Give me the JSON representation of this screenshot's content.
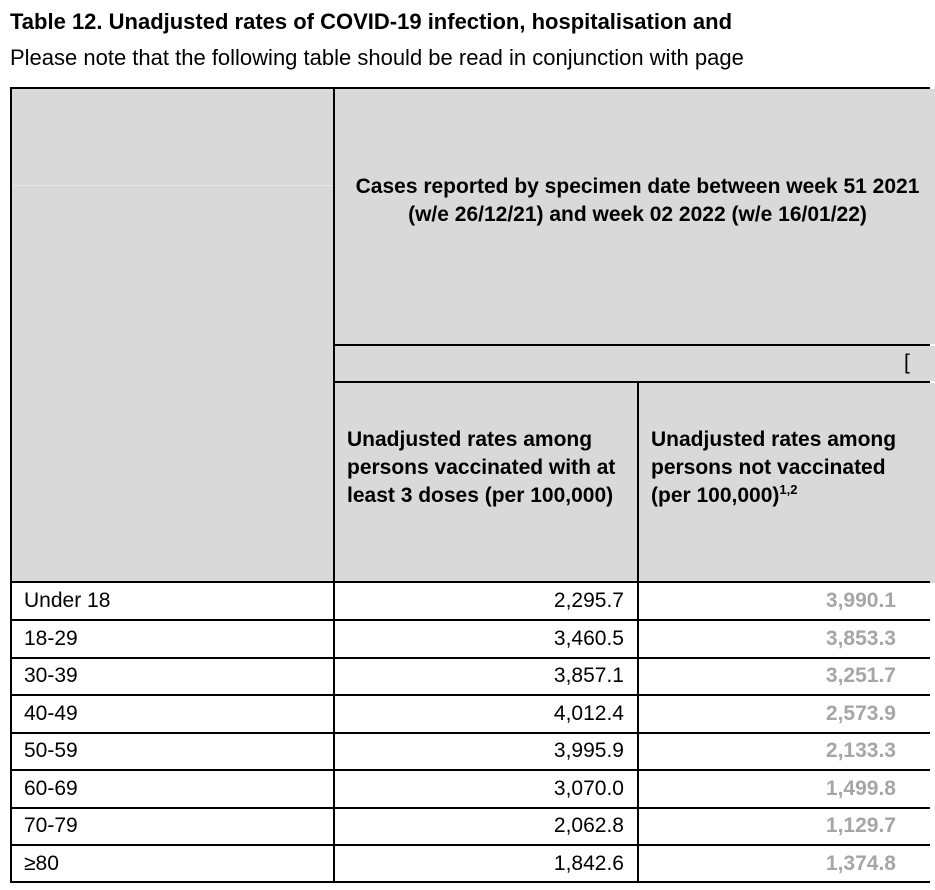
{
  "title": "Table 12. Unadjusted rates of COVID-19 infection, hospitalisation and",
  "note": "Please note that the following table should be read in conjunction with page",
  "header": {
    "period": "Cases reported by specimen date between week 51 2021 (w/e 26/12/21) and week 02 2022 (w/e 16/01/22)",
    "col_vaccinated": "Unadjusted rates among persons vaccinated with at least 3 doses (per 100,000)",
    "col_not_vaccinated": "Unadjusted rates among persons not vaccinated (per 100,000)",
    "col_not_vaccinated_sup": "1,2",
    "partial_glyph": "["
  },
  "rows": [
    {
      "age": "Under 18",
      "vaccinated": "2,295.7",
      "not_vaccinated": "3,990.1"
    },
    {
      "age": "18-29",
      "vaccinated": "3,460.5",
      "not_vaccinated": "3,853.3"
    },
    {
      "age": "30-39",
      "vaccinated": "3,857.1",
      "not_vaccinated": "3,251.7"
    },
    {
      "age": "40-49",
      "vaccinated": "4,012.4",
      "not_vaccinated": "2,573.9"
    },
    {
      "age": "50-59",
      "vaccinated": "3,995.9",
      "not_vaccinated": "2,133.3"
    },
    {
      "age": "60-69",
      "vaccinated": "3,070.0",
      "not_vaccinated": "1,499.8"
    },
    {
      "age": "70-79",
      "vaccinated": "2,062.8",
      "not_vaccinated": "1,129.7"
    },
    {
      "age": "≥80",
      "vaccinated": "1,842.6",
      "not_vaccinated": "1,374.8"
    }
  ],
  "colors": {
    "header_bg": "#d9d9d9",
    "grey_value": "#a6a6a6"
  }
}
